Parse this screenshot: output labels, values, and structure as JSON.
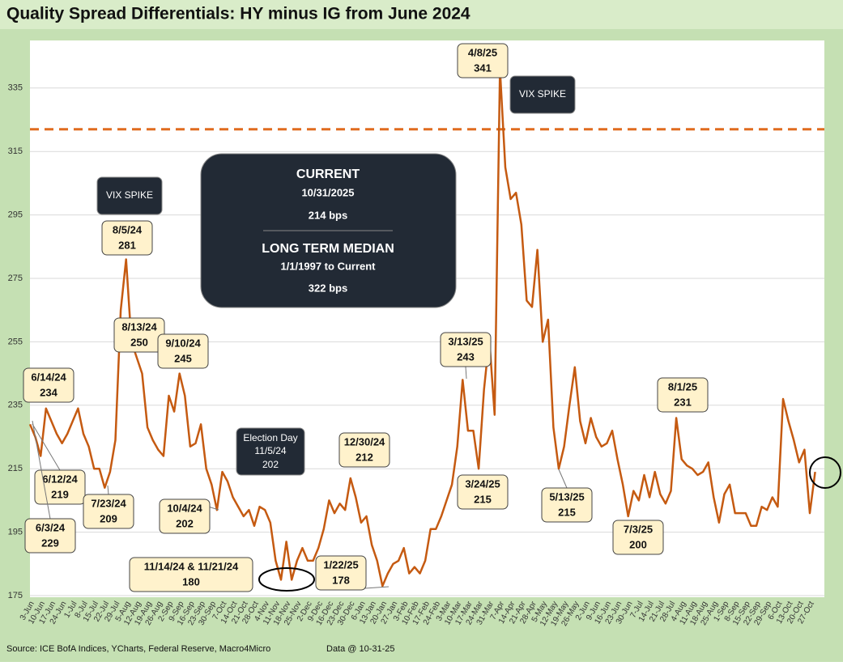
{
  "chart_data": {
    "type": "line",
    "title": "Quality Spread Differentials: HY minus IG from June 2024",
    "categories": [
      "3-Jun",
      null,
      "10-Jun",
      null,
      "17-Jun",
      null,
      "24-Jun",
      null,
      "1-Jul",
      null,
      "8-Jul",
      null,
      "15-Jul",
      null,
      "22-Jul",
      null,
      "29-Jul",
      null,
      "5-Aug",
      null,
      "12-Aug",
      null,
      "19-Aug",
      null,
      "26-Aug",
      null,
      "2-Sep",
      null,
      "9-Sep",
      null,
      "16-Sep",
      null,
      "23-Sep",
      null,
      "30-Sep",
      null,
      "7-Oct",
      null,
      "14-Oct",
      null,
      "21-Oct",
      null,
      "28-Oct",
      null,
      "4-Nov",
      null,
      "11-Nov",
      null,
      "18-Nov",
      null,
      "25-Nov",
      null,
      "2-Dec",
      null,
      "9-Dec",
      null,
      "16-Dec",
      null,
      "23-Dec",
      null,
      "30-Dec",
      null,
      "6-Jan",
      null,
      "13-Jan",
      null,
      "20-Jan",
      null,
      "27-Jan",
      null,
      "3-Feb",
      null,
      "10-Feb",
      null,
      "17-Feb",
      null,
      "24-Feb",
      null,
      "3-Mar",
      null,
      "10-Mar",
      null,
      "17-Mar",
      null,
      "24-Mar",
      null,
      "31-Mar",
      null,
      "7-Apr",
      null,
      "14-Apr",
      null,
      "21-Apr",
      null,
      "28-Apr",
      null,
      "5-May",
      null,
      "12-May",
      null,
      "19-May",
      null,
      "26-May",
      null,
      "2-Jun",
      null,
      "9-Jun",
      null,
      "16-Jun",
      null,
      "23-Jun",
      null,
      "30-Jun",
      null,
      "7-Jul",
      null,
      "14-Jul",
      null,
      "21-Jul",
      null,
      "28-Jul",
      null,
      "4-Aug",
      null,
      "11-Aug",
      null,
      "18-Aug",
      null,
      "25-Aug",
      null,
      "1-Sep",
      null,
      "8-Sep",
      null,
      "15-Sep",
      null,
      "22-Sep",
      null,
      "29-Sep",
      null,
      "6-Oct",
      null,
      "13-Oct",
      null,
      "20-Oct",
      null,
      "27-Oct",
      null
    ],
    "values": [
      229,
      225,
      219,
      234,
      230,
      226,
      223,
      226,
      230,
      234,
      226,
      222,
      215,
      215,
      209,
      214,
      224,
      265,
      281,
      255,
      250,
      245,
      228,
      224,
      221,
      219,
      238,
      233,
      245,
      238,
      222,
      223,
      229,
      215,
      210,
      202,
      214,
      211,
      206,
      203,
      200,
      202,
      197,
      203,
      202,
      198,
      186,
      180,
      192,
      180,
      186,
      190,
      186,
      186,
      190,
      196,
      205,
      201,
      204,
      202,
      212,
      206,
      198,
      200,
      191,
      186,
      178,
      182,
      185,
      186,
      190,
      182,
      184,
      182,
      186,
      196,
      196,
      200,
      205,
      210,
      222,
      243,
      227,
      227,
      215,
      240,
      256,
      232,
      341,
      310,
      300,
      302,
      292,
      268,
      266,
      284,
      255,
      262,
      228,
      215,
      222,
      235,
      247,
      230,
      223,
      231,
      225,
      222,
      223,
      227,
      218,
      210,
      200,
      208,
      205,
      213,
      206,
      214,
      207,
      204,
      208,
      231,
      218,
      216,
      215,
      213,
      214,
      217,
      206,
      198,
      207,
      210,
      201,
      201,
      201,
      197,
      197,
      203,
      202,
      206,
      203,
      237,
      230,
      224,
      217,
      221,
      201,
      214
    ],
    "color": "#c55a11",
    "ylim": [
      175,
      350
    ],
    "yticks": [
      175,
      195,
      215,
      235,
      255,
      275,
      295,
      315,
      335
    ],
    "grid": true,
    "median_line": 322,
    "median_color": "#e06c1f",
    "vix_label": "VIX SPIKE",
    "info_box": {
      "current_title": "CURRENT",
      "current_date": "10/31/2025",
      "current_value": "214 bps",
      "median_title": "LONG TERM MEDIAN",
      "median_period": "1/1/1997 to Current",
      "median_value": "322 bps"
    },
    "callouts": [
      {
        "date": "6/14/24",
        "value": 234
      },
      {
        "date": "6/12/24",
        "value": 219
      },
      {
        "date": "6/3/24",
        "value": 229
      },
      {
        "date": "7/23/24",
        "value": 209
      },
      {
        "date": "8/5/24",
        "value": 281
      },
      {
        "date": "8/13/24",
        "value": 250
      },
      {
        "date": "9/10/24",
        "value": 245
      },
      {
        "date": "10/4/24",
        "value": 202
      },
      {
        "title": "Election Day",
        "date": "11/5/24",
        "value": 202
      },
      {
        "date": "11/14/24 & 11/21/24",
        "value": 180
      },
      {
        "date": "12/30/24",
        "value": 212
      },
      {
        "date": "1/22/25",
        "value": 178
      },
      {
        "date": "3/13/25",
        "value": 243
      },
      {
        "date": "3/24/25",
        "value": 215
      },
      {
        "date": "4/8/25",
        "value": 341
      },
      {
        "date": "5/13/25",
        "value": 215
      },
      {
        "date": "7/3/25",
        "value": 200
      },
      {
        "date": "8/1/25",
        "value": 231
      }
    ],
    "source": "Source: ICE BofA Indices, YCharts, Federal Reserve, Macro4Micro",
    "data_note": "Data @ 10-31-25"
  }
}
